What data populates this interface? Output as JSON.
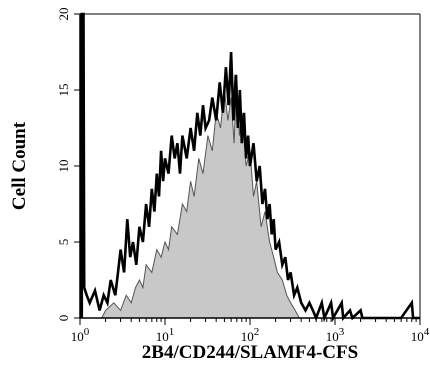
{
  "chart_data": {
    "type": "area",
    "title": "",
    "xlabel": "2B4/CD244/SLAMF4-CFS",
    "ylabel": "Cell Count",
    "x_scale": "log",
    "xlim": [
      1,
      10000
    ],
    "ylim": [
      0,
      20
    ],
    "grid": false,
    "legend": "none",
    "x_ticks": [
      {
        "value": 1,
        "base": "10",
        "exp": "0"
      },
      {
        "value": 10,
        "base": "10",
        "exp": "1"
      },
      {
        "value": 100,
        "base": "10",
        "exp": "2"
      },
      {
        "value": 1000,
        "base": "10",
        "exp": "3"
      },
      {
        "value": 10000,
        "base": "10",
        "exp": "4"
      }
    ],
    "y_ticks": [
      "0",
      "5",
      "10",
      "15",
      "20"
    ],
    "series": [
      {
        "role": "isotype-control",
        "fill": "#c8c8c8",
        "stroke": "#555555",
        "points": [
          [
            1.8,
            0
          ],
          [
            2.0,
            0.5
          ],
          [
            2.5,
            1.0
          ],
          [
            3.0,
            0.5
          ],
          [
            3.5,
            1.5
          ],
          [
            4.0,
            1.0
          ],
          [
            4.5,
            2.0
          ],
          [
            5.0,
            2.5
          ],
          [
            5.5,
            2.0
          ],
          [
            6.0,
            3.5
          ],
          [
            7.0,
            3.0
          ],
          [
            8.0,
            4.5
          ],
          [
            9.0,
            4.0
          ],
          [
            10,
            5.0
          ],
          [
            11,
            4.5
          ],
          [
            12,
            6.0
          ],
          [
            14,
            5.5
          ],
          [
            16,
            7.5
          ],
          [
            18,
            7.0
          ],
          [
            20,
            9.0
          ],
          [
            22,
            8.0
          ],
          [
            25,
            10.5
          ],
          [
            28,
            9.5
          ],
          [
            32,
            12.0
          ],
          [
            36,
            11.0
          ],
          [
            40,
            13.5
          ],
          [
            45,
            12.5
          ],
          [
            50,
            15.0
          ],
          [
            55,
            13.0
          ],
          [
            60,
            14.5
          ],
          [
            65,
            11.5
          ],
          [
            70,
            16.0
          ],
          [
            75,
            12.0
          ],
          [
            80,
            13.5
          ],
          [
            90,
            10.0
          ],
          [
            100,
            11.0
          ],
          [
            110,
            8.0
          ],
          [
            120,
            9.0
          ],
          [
            135,
            6.0
          ],
          [
            150,
            7.0
          ],
          [
            170,
            5.0
          ],
          [
            190,
            4.0
          ],
          [
            210,
            3.0
          ],
          [
            240,
            2.5
          ],
          [
            270,
            1.5
          ],
          [
            300,
            1.0
          ],
          [
            340,
            0.5
          ],
          [
            380,
            0
          ]
        ]
      },
      {
        "role": "sample",
        "stroke": "#000000",
        "points": [
          [
            1.05,
            0
          ],
          [
            1.05,
            20
          ],
          [
            1.1,
            20
          ],
          [
            1.12,
            2
          ],
          [
            1.2,
            1.5
          ],
          [
            1.3,
            1.0
          ],
          [
            1.5,
            1.8
          ],
          [
            1.7,
            0.5
          ],
          [
            1.9,
            1.5
          ],
          [
            2.1,
            1.0
          ],
          [
            2.3,
            2.5
          ],
          [
            2.6,
            1.5
          ],
          [
            2.8,
            3.0
          ],
          [
            3.0,
            4.5
          ],
          [
            3.3,
            3.0
          ],
          [
            3.6,
            6.5
          ],
          [
            3.9,
            4.0
          ],
          [
            4.2,
            5.0
          ],
          [
            4.6,
            3.5
          ],
          [
            5.0,
            6.0
          ],
          [
            5.5,
            5.0
          ],
          [
            6.0,
            7.5
          ],
          [
            6.5,
            6.0
          ],
          [
            7.0,
            8.5
          ],
          [
            7.5,
            7.0
          ],
          [
            8.0,
            9.5
          ],
          [
            8.5,
            8.0
          ],
          [
            9.0,
            11.0
          ],
          [
            9.5,
            9.0
          ],
          [
            10,
            10.5
          ],
          [
            11,
            9.5
          ],
          [
            12,
            12.0
          ],
          [
            13,
            10.5
          ],
          [
            14,
            11.5
          ],
          [
            15,
            9.5
          ],
          [
            16,
            12.0
          ],
          [
            18,
            10.5
          ],
          [
            20,
            12.5
          ],
          [
            22,
            11.0
          ],
          [
            24,
            13.5
          ],
          [
            26,
            12.0
          ],
          [
            28,
            14.0
          ],
          [
            30,
            12.5
          ],
          [
            33,
            13.0
          ],
          [
            36,
            14.5
          ],
          [
            40,
            13.0
          ],
          [
            44,
            15.5
          ],
          [
            48,
            13.5
          ],
          [
            52,
            16.5
          ],
          [
            56,
            14.0
          ],
          [
            60,
            17.5
          ],
          [
            64,
            13.0
          ],
          [
            68,
            16.0
          ],
          [
            72,
            12.5
          ],
          [
            76,
            15.0
          ],
          [
            80,
            11.5
          ],
          [
            85,
            13.5
          ],
          [
            90,
            10.5
          ],
          [
            95,
            12.0
          ],
          [
            100,
            10.0
          ],
          [
            110,
            11.5
          ],
          [
            120,
            9.0
          ],
          [
            130,
            10.0
          ],
          [
            140,
            7.5
          ],
          [
            150,
            8.5
          ],
          [
            160,
            6.5
          ],
          [
            170,
            7.5
          ],
          [
            180,
            5.5
          ],
          [
            190,
            6.5
          ],
          [
            200,
            4.5
          ],
          [
            220,
            5.0
          ],
          [
            240,
            3.5
          ],
          [
            260,
            4.0
          ],
          [
            280,
            2.5
          ],
          [
            300,
            3.0
          ],
          [
            330,
            1.5
          ],
          [
            360,
            2.0
          ],
          [
            400,
            1.0
          ],
          [
            450,
            0.5
          ],
          [
            500,
            1.0
          ],
          [
            550,
            0.5
          ],
          [
            600,
            0
          ],
          [
            700,
            1.0
          ],
          [
            750,
            0
          ],
          [
            900,
            1.0
          ],
          [
            950,
            0
          ],
          [
            1200,
            1.0
          ],
          [
            1250,
            0
          ],
          [
            1500,
            0.5
          ],
          [
            1600,
            0
          ],
          [
            2000,
            0.5
          ],
          [
            2100,
            0
          ],
          [
            6000,
            0
          ],
          [
            8000,
            1.0
          ],
          [
            8300,
            0
          ],
          [
            10000,
            0
          ]
        ]
      }
    ]
  }
}
